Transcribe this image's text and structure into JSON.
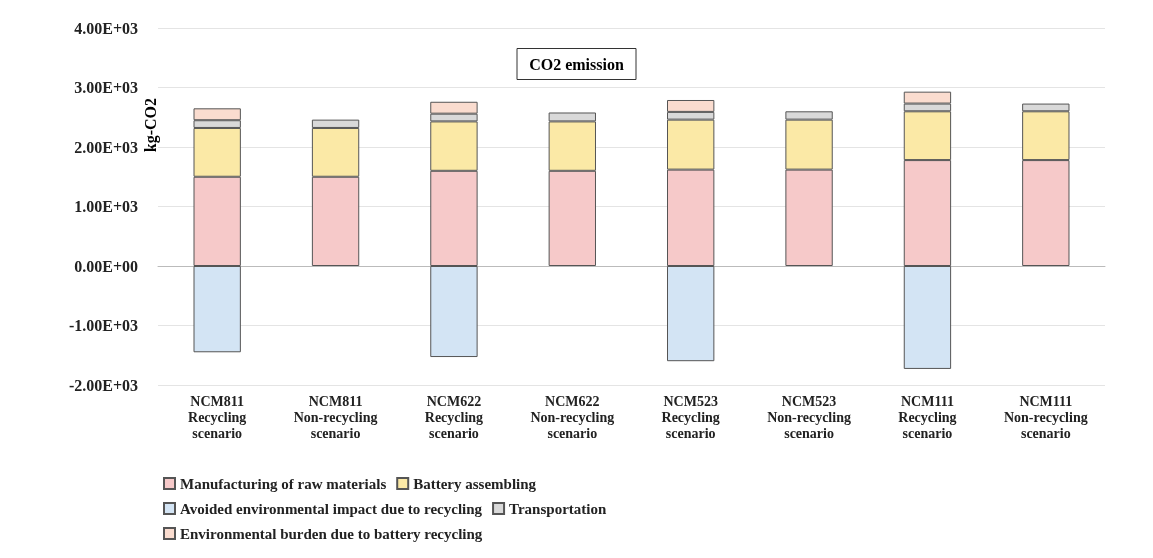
{
  "chart_data": {
    "type": "bar",
    "title": "CO2 emission",
    "ylabel": "kg-CO2",
    "stacked": true,
    "grid": "y",
    "legend": "bottom",
    "categories": [
      "NCM811\nRecycling\nscenario",
      "NCM811\nNon-recycling\nscenario",
      "NCM622\nRecycling\nscenario",
      "NCM622\nNon-recycling\nscenario",
      "NCM523\nRecycling\nscenario",
      "NCM523\nNon-recycling\nscenario",
      "NCM111\nRecycling\nscenario",
      "NCM111\nNon-recycling\nscenario"
    ],
    "series": [
      {
        "name": "Manufacturing of raw materials",
        "color": "#f6c9c9",
        "values": [
          1500,
          1500,
          1600,
          1600,
          1620,
          1620,
          1780,
          1780
        ]
      },
      {
        "name": "Battery assembling",
        "color": "#fbe9a6",
        "values": [
          820,
          820,
          830,
          830,
          840,
          840,
          820,
          820
        ]
      },
      {
        "name": "Avoided environmental impact due to recycling",
        "color": "#d3e4f4",
        "values": [
          -1450,
          null,
          -1530,
          null,
          -1600,
          null,
          -1730,
          null
        ]
      },
      {
        "name": "Transportation",
        "color": "#d9d9d9",
        "values": [
          130,
          140,
          130,
          150,
          130,
          140,
          130,
          130
        ]
      },
      {
        "name": "Environmental burden due to battery recycling",
        "color": "#fadccf",
        "values": [
          200,
          null,
          200,
          null,
          200,
          null,
          200,
          null
        ]
      }
    ],
    "ylim": [
      -2000,
      4000
    ],
    "yticks": [
      {
        "value": -2000,
        "label": "-2.00E+03"
      },
      {
        "value": -1000,
        "label": "-1.00E+03"
      },
      {
        "value": 0,
        "label": "0.00E+00"
      },
      {
        "value": 1000,
        "label": "1.00E+03"
      },
      {
        "value": 2000,
        "label": "2.00E+03"
      },
      {
        "value": 3000,
        "label": "3.00E+03"
      },
      {
        "value": 4000,
        "label": "4.00E+03"
      }
    ]
  }
}
